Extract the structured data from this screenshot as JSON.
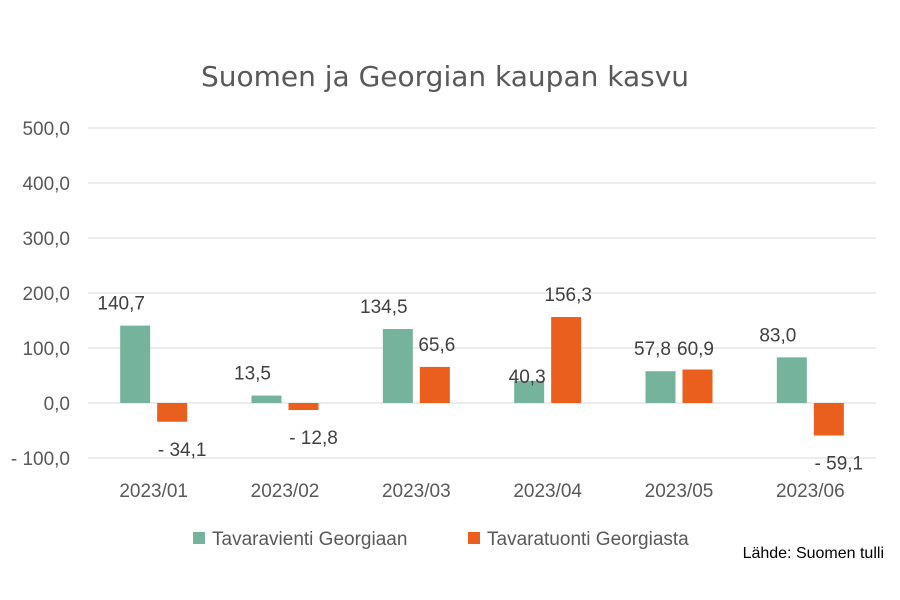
{
  "chart_data": {
    "type": "bar",
    "title": "Suomen ja Georgian kaupan kasvu",
    "categories": [
      "2023/01",
      "2023/02",
      "2023/03",
      "2023/04",
      "2023/05",
      "2023/06"
    ],
    "series": [
      {
        "name": "Tavaravienti Georgiaan",
        "color": "#76b39d",
        "values": [
          140.7,
          13.5,
          134.5,
          40.3,
          57.8,
          83.0
        ],
        "labels": [
          "140,7",
          "13,5",
          "134,5",
          "40,3",
          "57,8",
          "83,0"
        ]
      },
      {
        "name": "Tavaratuonti Georgiasta",
        "color": "#ea5e1e",
        "values": [
          -34.1,
          -12.8,
          65.6,
          156.3,
          60.9,
          -59.1
        ],
        "labels": [
          "- 34,1",
          "- 12,8",
          "65,6",
          "156,3",
          "60,9",
          "- 59,1"
        ]
      }
    ],
    "ylim": [
      -100,
      500
    ],
    "yticks": [
      500,
      400,
      300,
      200,
      100,
      0,
      -100
    ],
    "ytick_labels": [
      "500,0",
      "400,0",
      "300,0",
      "200,0",
      "100,0",
      "0,0",
      "- 100,0"
    ],
    "grid": true,
    "legend_position": "bottom",
    "source": "Lähde: Suomen tulli"
  }
}
